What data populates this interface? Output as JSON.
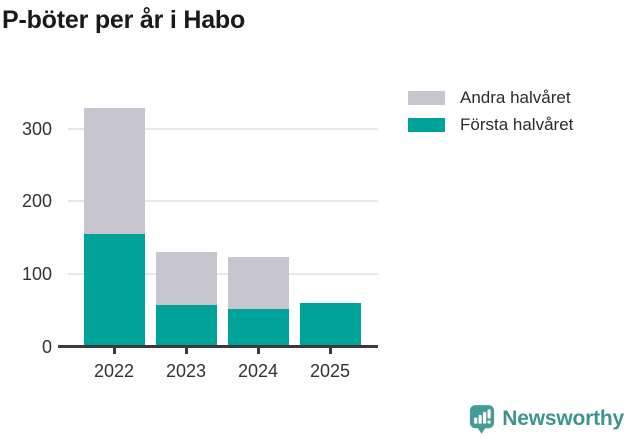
{
  "title": "P-böter per år i Habo",
  "legend": {
    "items": [
      {
        "label": "Andra halvåret",
        "series": "second_half"
      },
      {
        "label": "Första halvåret",
        "series": "first_half"
      }
    ]
  },
  "colors": {
    "first_half": "#00a399",
    "second_half": "#c7c5ce",
    "axis": "#3a3a3a",
    "grid": "#e8e7ea",
    "tick_text": "#333333",
    "title_text": "#1a1a1a",
    "brand": "#3d948e"
  },
  "chart_data": {
    "type": "bar",
    "stacked": true,
    "title": "P-böter per år i Habo",
    "xlabel": "",
    "ylabel": "",
    "categories": [
      "2022",
      "2023",
      "2024",
      "2025"
    ],
    "series": [
      {
        "name": "Första halvåret",
        "color": "#00a399",
        "values": [
          155,
          58,
          52,
          60
        ]
      },
      {
        "name": "Andra halvåret",
        "color": "#c7c5ce",
        "values": [
          174,
          72,
          72,
          0
        ]
      }
    ],
    "totals": [
      329,
      130,
      124,
      60
    ],
    "ylim": [
      0,
      360
    ],
    "yticks": [
      0,
      100,
      200,
      300
    ],
    "grid": true,
    "legend_position": "top-right"
  },
  "branding": {
    "logo_text": "Newsworthy"
  }
}
